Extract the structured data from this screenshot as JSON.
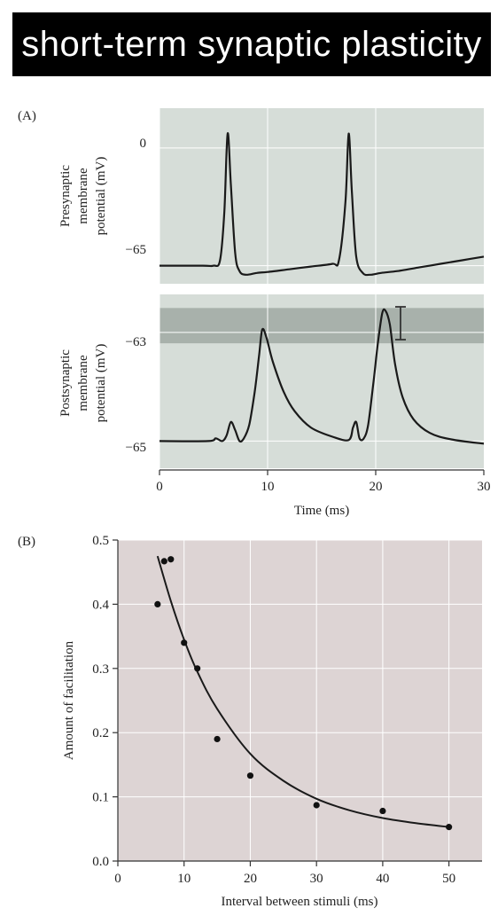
{
  "title": "short-term synaptic plasticity",
  "colors": {
    "panelA_bg": "#d6ddd8",
    "panelA_band": "#a8b1ab",
    "panelB_bg": "#ddd4d4",
    "trace": "#1a1a1a"
  },
  "chart_data": [
    {
      "type": "line",
      "panel_label": "(A)",
      "ylabel_lines": [
        "Presynaptic",
        "membrane",
        "potential (mV)"
      ],
      "ytick_labels": [
        "0",
        "−65"
      ],
      "ylim": [
        -75,
        22
      ],
      "xlim": [
        0,
        30
      ],
      "grid": true,
      "series": [
        {
          "x": [
            0,
            4,
            5,
            5.6,
            6.0,
            6.3,
            6.6,
            7.0,
            7.4,
            8.0,
            9,
            10,
            12,
            14,
            16,
            16.6,
            17.2,
            17.5,
            17.8,
            18.2,
            18.8,
            19.5,
            20.5,
            22,
            24,
            26,
            28,
            30
          ],
          "y": [
            -65,
            -65,
            -65,
            -62,
            -35,
            8,
            -20,
            -58,
            -68,
            -70,
            -69,
            -68.5,
            -67,
            -65.5,
            -64,
            -62,
            -30,
            8,
            -25,
            -60,
            -69,
            -70,
            -69,
            -68,
            -66,
            -64,
            -62,
            -60
          ]
        }
      ]
    },
    {
      "type": "line",
      "ylabel_lines": [
        "Postsynaptic",
        "membrane",
        "potential (mV)"
      ],
      "ytick_labels": [
        "−63",
        "−65"
      ],
      "ylim": [
        -65.5,
        -62.3
      ],
      "xlim": [
        0,
        30
      ],
      "xticks": [
        0,
        10,
        20,
        30
      ],
      "xlabel": "Time (ms)",
      "shaded_band": [
        -63.2,
        -62.55
      ],
      "grid": true,
      "series": [
        {
          "x": [
            0,
            4.5,
            5.2,
            5.8,
            6.2,
            6.6,
            7.0,
            7.4,
            7.8,
            8.3,
            8.8,
            9.2,
            9.5,
            9.9,
            10.5,
            11.5,
            12.5,
            14,
            16,
            17.5,
            17.9,
            18.2,
            18.5,
            18.9,
            19.3,
            19.8,
            20.2,
            20.6,
            20.9,
            21.3,
            21.8,
            22.5,
            23.5,
            25,
            27,
            30
          ],
          "y": [
            -65,
            -65,
            -64.95,
            -65,
            -64.9,
            -64.65,
            -64.8,
            -65,
            -64.95,
            -64.7,
            -64.1,
            -63.45,
            -62.95,
            -63.1,
            -63.55,
            -64.1,
            -64.45,
            -64.75,
            -64.92,
            -64.98,
            -64.75,
            -64.65,
            -64.95,
            -64.95,
            -64.7,
            -63.9,
            -63.2,
            -62.65,
            -62.6,
            -62.85,
            -63.6,
            -64.2,
            -64.6,
            -64.85,
            -64.97,
            -65.05
          ]
        }
      ]
    },
    {
      "type": "scatter",
      "panel_label": "(B)",
      "xlabel": "Interval between stimuli (ms)",
      "ylabel": "Amount of facilitation",
      "xlim": [
        0,
        55
      ],
      "ylim": [
        0,
        0.5
      ],
      "xticks": [
        "0",
        "10",
        "20",
        "30",
        "40",
        "50"
      ],
      "yticks": [
        "0.0",
        "0.1",
        "0.2",
        "0.3",
        "0.4",
        "0.5"
      ],
      "grid": true,
      "points": {
        "x": [
          6,
          7,
          8,
          10,
          12,
          15,
          20,
          30,
          40,
          50
        ],
        "y": [
          0.4,
          0.467,
          0.47,
          0.34,
          0.3,
          0.19,
          0.133,
          0.087,
          0.078,
          0.053
        ]
      },
      "fit_curve": {
        "x": [
          6,
          8,
          10,
          12,
          15,
          20,
          25,
          30,
          35,
          40,
          45,
          50
        ],
        "y": [
          0.475,
          0.405,
          0.345,
          0.295,
          0.237,
          0.167,
          0.125,
          0.097,
          0.079,
          0.067,
          0.059,
          0.053
        ]
      }
    }
  ]
}
